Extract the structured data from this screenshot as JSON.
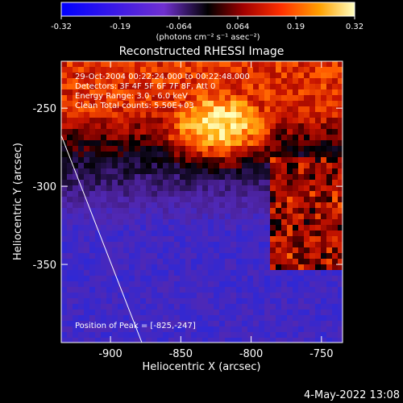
{
  "colorbar": {
    "ticks": [
      "-0.32",
      "-0.19",
      "-0.064",
      "0.064",
      "0.19",
      "0.32"
    ],
    "units_html": "(photons cm⁻² s⁻¹ asec⁻²)",
    "range": [
      -0.32,
      0.32
    ]
  },
  "title": "Reconstructed RHESSI Image",
  "info": {
    "line1": "29-Oct-2004 00:22:24.000 to 00:22:48.000",
    "line2": "Detectors: 3F 4F 5F 6F 7F 8F, Att 0",
    "line3": "Energy Range: 3.0 - 6.0 keV",
    "line4": "Clean    Total counts: 5.50E+03"
  },
  "peak_label": "Position of Peak = [-825,-247]",
  "xlabel": "Heliocentric X (arcsec)",
  "ylabel": "Heliocentric Y (arcsec)",
  "footer_date": "4-May-2022 13:08",
  "chart_data": {
    "type": "heatmap",
    "title": "Reconstructed RHESSI Image",
    "xlabel": "Heliocentric X (arcsec)",
    "ylabel": "Heliocentric Y (arcsec)",
    "xlim": [
      -935,
      -735
    ],
    "ylim": [
      -400,
      -220
    ],
    "xticks": [
      -900,
      -850,
      -800,
      -750
    ],
    "yticks": [
      -250,
      -300,
      -350
    ],
    "xtick_labels": [
      "-900",
      "-850",
      "-800",
      "-750"
    ],
    "ytick_labels": [
      "-250",
      "-300",
      "-350"
    ],
    "colorbar_range": [
      -0.32,
      0.32
    ],
    "peak": {
      "x": -825,
      "y": -247
    },
    "limb_line": {
      "x": [
        -935,
        -877
      ],
      "y": [
        -258,
        -400
      ]
    }
  }
}
